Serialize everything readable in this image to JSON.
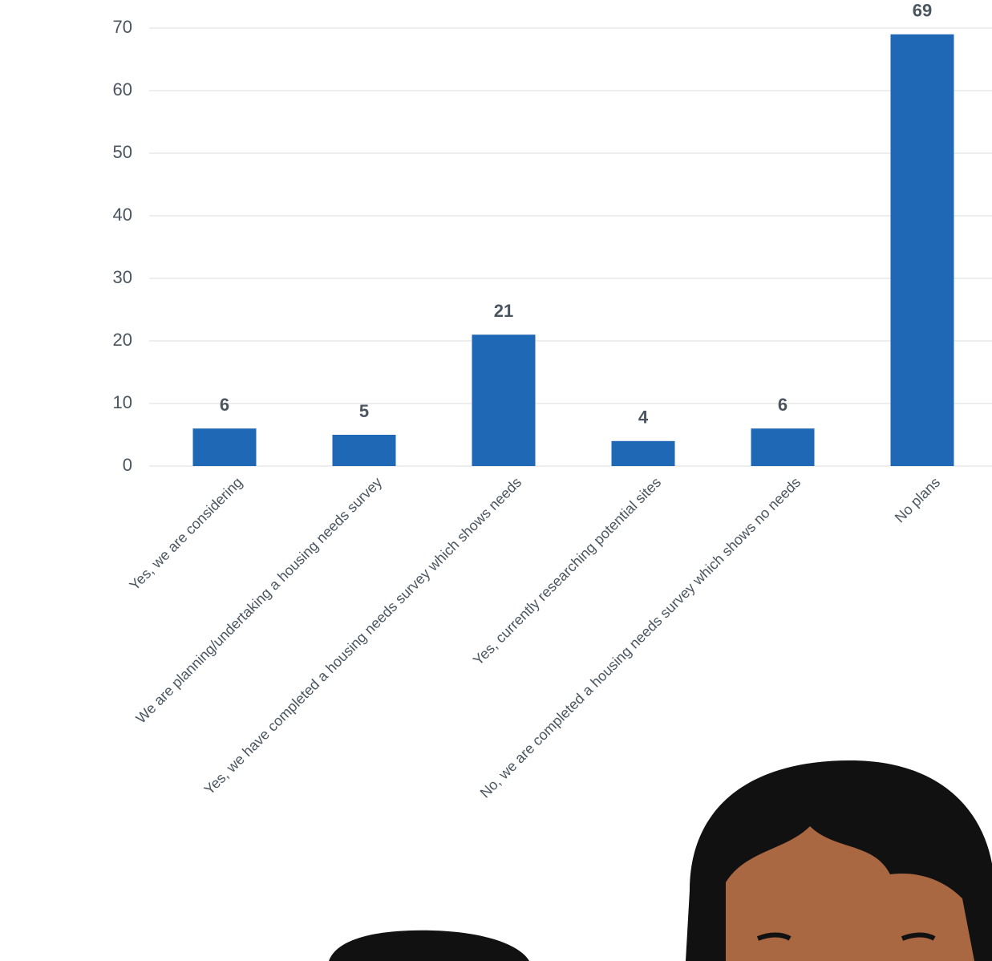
{
  "chart_data": {
    "type": "bar",
    "categories": [
      "Yes, we are considering",
      "We are planning/undertaking a housing needs survey",
      "Yes, we have completed a housing needs survey which shows needs",
      "Yes, currently researching potential sites",
      "No, we are completed a housing needs survey which shows no needs",
      "No plans"
    ],
    "values": [
      6,
      5,
      21,
      4,
      6,
      69
    ],
    "color": "#1f68b5",
    "ylim": [
      0,
      70
    ],
    "yticks": [
      0,
      10,
      20,
      30,
      40,
      50,
      60,
      70
    ],
    "grid": true
  }
}
